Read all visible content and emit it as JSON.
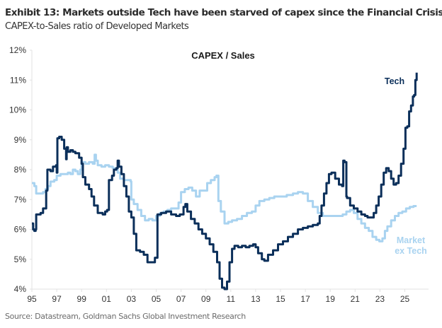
{
  "header": {
    "title": "Exhibit 13: Markets outside Tech have been starved of capex since the Financial Crisis",
    "subtitle": "CAPEX-to-Sales ratio of Developed Markets"
  },
  "footer": {
    "source": "Source: Datastream, Goldman Sachs Global Investment Research"
  },
  "chart_data": {
    "type": "line",
    "title": "CAPEX / Sales",
    "xlabel": "",
    "ylabel": "",
    "xlim": [
      1995,
      2026.9
    ],
    "ylim": [
      4,
      12
    ],
    "grid": false,
    "x_ticks": [
      1995,
      1997,
      1999,
      2001,
      2003,
      2005,
      2007,
      2009,
      2011,
      2013,
      2015,
      2017,
      2019,
      2021,
      2023,
      2025
    ],
    "x_tick_labels": [
      "95",
      "97",
      "99",
      "01",
      "03",
      "05",
      "07",
      "09",
      "11",
      "13",
      "15",
      "17",
      "19",
      "21",
      "23",
      "25"
    ],
    "y_ticks": [
      4,
      5,
      6,
      7,
      8,
      9,
      10,
      11,
      12
    ],
    "y_tick_labels": [
      "4%",
      "5%",
      "6%",
      "7%",
      "8%",
      "9%",
      "10%",
      "11%",
      "12%"
    ],
    "legend": "inline labels at line ends",
    "series": [
      {
        "name": "Tech",
        "label_lines": [
          "Tech"
        ],
        "color": "#0b2f5a",
        "x": [
          1995.0,
          1995.1,
          1995.2,
          1995.3,
          1995.35,
          1995.7,
          1995.9,
          1996.0,
          1996.15,
          1996.25,
          1996.5,
          1996.7,
          1996.95,
          1997.0,
          1997.05,
          1997.2,
          1997.4,
          1997.6,
          1997.75,
          1997.8,
          1997.9,
          1998.1,
          1998.3,
          1998.5,
          1998.8,
          1999.0,
          1999.1,
          1999.3,
          1999.6,
          1999.8,
          2000.0,
          2000.3,
          2000.7,
          2000.9,
          2001.05,
          2001.2,
          2001.45,
          2001.6,
          2001.8,
          2001.9,
          2002.0,
          2002.2,
          2002.4,
          2002.6,
          2002.8,
          2003.0,
          2003.2,
          2003.4,
          2003.7,
          2004.0,
          2004.3,
          2004.6,
          2004.9,
          2005.1,
          2005.4,
          2005.8,
          2006.2,
          2006.6,
          2006.9,
          2007.2,
          2007.35,
          2007.5,
          2007.8,
          2008.1,
          2008.4,
          2008.7,
          2009.0,
          2009.3,
          2009.6,
          2009.9,
          2010.1,
          2010.3,
          2010.5,
          2010.7,
          2010.9,
          2011.1,
          2011.3,
          2011.6,
          2011.9,
          2012.2,
          2012.5,
          2012.8,
          2013.0,
          2013.2,
          2013.5,
          2013.7,
          2014.0,
          2014.4,
          2014.8,
          2015.2,
          2015.6,
          2016.0,
          2016.4,
          2016.8,
          2017.2,
          2017.6,
          2018.0,
          2018.15,
          2018.3,
          2018.5,
          2018.7,
          2018.9,
          2019.1,
          2019.4,
          2019.7,
          2019.95,
          2020.05,
          2020.15,
          2020.3,
          2020.35,
          2020.6,
          2020.9,
          2021.2,
          2021.5,
          2021.8,
          2022.0,
          2022.3,
          2022.5,
          2022.7,
          2022.9,
          2023.1,
          2023.3,
          2023.5,
          2023.7,
          2023.9,
          2024.1,
          2024.3,
          2024.5,
          2024.7,
          2024.9,
          2025.05,
          2025.2,
          2025.35,
          2025.5,
          2025.65,
          2025.75,
          2025.85,
          2025.95
        ],
        "y": [
          6.2,
          6.0,
          5.95,
          6.0,
          6.5,
          6.55,
          6.7,
          6.7,
          7.3,
          8.0,
          7.95,
          8.1,
          8.15,
          7.9,
          9.05,
          9.1,
          9.0,
          8.7,
          8.35,
          8.75,
          8.6,
          8.65,
          8.6,
          8.55,
          8.4,
          8.2,
          7.75,
          7.5,
          7.35,
          7.1,
          6.8,
          6.55,
          6.5,
          6.6,
          6.65,
          7.65,
          7.8,
          8.0,
          8.05,
          8.3,
          8.1,
          7.85,
          7.45,
          7.1,
          6.6,
          6.4,
          5.85,
          5.3,
          5.25,
          5.15,
          4.9,
          4.9,
          5.05,
          6.5,
          6.55,
          6.6,
          6.5,
          6.45,
          6.5,
          6.75,
          6.85,
          6.6,
          6.35,
          6.2,
          6.0,
          5.85,
          5.7,
          5.5,
          5.25,
          4.9,
          4.35,
          4.05,
          4.0,
          4.25,
          4.9,
          5.35,
          5.45,
          5.4,
          5.45,
          5.4,
          5.45,
          5.5,
          5.4,
          5.2,
          5.0,
          4.95,
          5.15,
          5.3,
          5.5,
          5.6,
          5.75,
          5.85,
          6.0,
          6.05,
          6.1,
          6.15,
          6.2,
          6.45,
          6.8,
          7.2,
          7.55,
          7.85,
          7.9,
          7.7,
          7.5,
          7.45,
          8.3,
          8.25,
          7.1,
          7.05,
          6.8,
          6.7,
          6.6,
          6.5,
          6.45,
          6.4,
          6.4,
          6.55,
          6.8,
          7.1,
          7.5,
          7.9,
          8.05,
          7.95,
          7.7,
          7.5,
          7.55,
          7.8,
          8.2,
          8.7,
          9.4,
          9.45,
          9.95,
          10.15,
          10.45,
          10.5,
          11.0,
          11.25
        ]
      },
      {
        "name": "Market ex Tech",
        "label_lines": [
          "Market",
          "ex Tech"
        ],
        "color": "#a9d3f0",
        "x": [
          1995.0,
          1995.2,
          1995.35,
          1995.6,
          1995.9,
          1996.1,
          1996.3,
          1996.5,
          1996.8,
          1997.0,
          1997.3,
          1997.6,
          1997.9,
          1998.1,
          1998.3,
          1998.5,
          1998.7,
          1998.9,
          1999.0,
          1999.3,
          1999.6,
          1999.9,
          2000.05,
          2000.15,
          2000.3,
          2000.6,
          2000.9,
          2001.2,
          2001.5,
          2001.7,
          2001.9,
          2002.1,
          2002.4,
          2002.7,
          2002.95,
          2003.0,
          2003.2,
          2003.5,
          2003.8,
          2004.1,
          2004.4,
          2004.7,
          2005.0,
          2005.3,
          2005.6,
          2005.9,
          2006.2,
          2006.5,
          2006.8,
          2007.0,
          2007.3,
          2007.6,
          2007.9,
          2008.2,
          2008.5,
          2008.8,
          2009.1,
          2009.4,
          2009.7,
          2009.85,
          2010.0,
          2010.2,
          2010.5,
          2010.8,
          2011.1,
          2011.5,
          2011.9,
          2012.3,
          2012.7,
          2013.0,
          2013.3,
          2013.7,
          2014.1,
          2014.5,
          2015.0,
          2015.5,
          2016.0,
          2016.4,
          2016.8,
          2017.2,
          2017.6,
          2018.0,
          2018.4,
          2018.8,
          2019.2,
          2019.6,
          2020.0,
          2020.3,
          2020.6,
          2020.9,
          2021.2,
          2021.5,
          2021.8,
          2022.1,
          2022.4,
          2022.7,
          2022.95,
          2023.2,
          2023.4,
          2023.6,
          2023.9,
          2024.2,
          2024.5,
          2024.8,
          2025.1,
          2025.4,
          2025.7,
          2025.95
        ],
        "y": [
          7.55,
          7.45,
          7.2,
          7.2,
          7.25,
          7.35,
          7.45,
          7.6,
          7.65,
          7.8,
          7.85,
          7.85,
          7.9,
          7.85,
          8.0,
          7.95,
          7.85,
          8.0,
          8.25,
          8.2,
          8.25,
          8.2,
          8.5,
          8.3,
          8.15,
          8.1,
          8.15,
          8.1,
          8.05,
          8.0,
          7.9,
          7.7,
          7.65,
          7.65,
          7.6,
          7.0,
          6.85,
          6.65,
          6.45,
          6.3,
          6.35,
          6.3,
          6.45,
          6.55,
          6.6,
          6.65,
          6.7,
          6.7,
          6.9,
          7.25,
          7.35,
          7.4,
          7.3,
          7.1,
          7.3,
          7.3,
          7.55,
          7.65,
          7.75,
          7.8,
          6.95,
          6.6,
          6.2,
          6.25,
          6.3,
          6.35,
          6.45,
          6.55,
          6.6,
          6.8,
          6.95,
          7.0,
          7.05,
          7.1,
          7.1,
          7.15,
          7.2,
          7.25,
          7.2,
          6.95,
          6.75,
          6.55,
          6.45,
          6.45,
          6.45,
          6.45,
          6.5,
          6.6,
          6.65,
          6.55,
          6.35,
          6.2,
          6.05,
          5.95,
          5.75,
          5.65,
          5.6,
          5.7,
          5.95,
          6.1,
          6.3,
          6.45,
          6.55,
          6.6,
          6.7,
          6.75,
          6.78,
          6.78
        ]
      }
    ]
  }
}
